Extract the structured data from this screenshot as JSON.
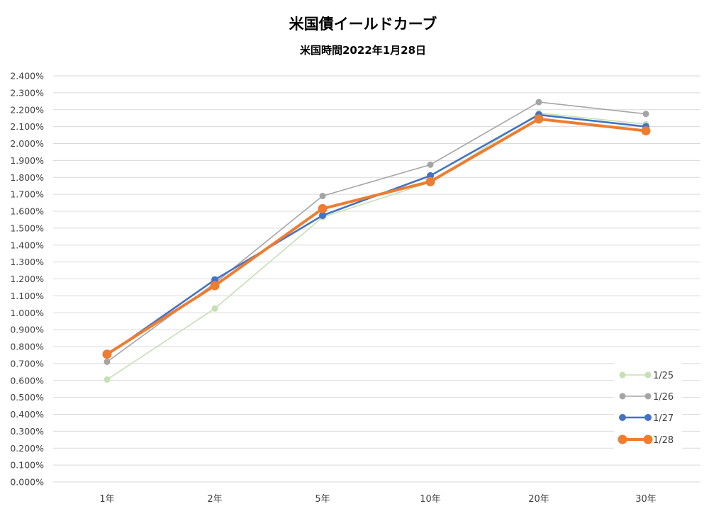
{
  "chart_data": {
    "type": "line",
    "title": "米国債イールドカーブ",
    "subtitle": "米国時間2022年1月28日",
    "categories": [
      "1年",
      "2年",
      "5年",
      "10年",
      "20年",
      "30年"
    ],
    "ylim": [
      0,
      2.4
    ],
    "ytick_step": 0.1,
    "ytick_format": "percent_3dp",
    "grid": true,
    "legend_position": "bottom-right",
    "series": [
      {
        "name": "1/25",
        "color": "#c5e0b4",
        "emphasis": "thin",
        "values": [
          0.605,
          1.025,
          1.565,
          1.77,
          2.18,
          2.115
        ]
      },
      {
        "name": "1/26",
        "color": "#a5a5a5",
        "emphasis": "thin",
        "values": [
          0.71,
          1.175,
          1.69,
          1.875,
          2.245,
          2.175
        ]
      },
      {
        "name": "1/27",
        "color": "#4472c4",
        "emphasis": "medium",
        "values": [
          0.75,
          1.195,
          1.575,
          1.81,
          2.17,
          2.1
        ]
      },
      {
        "name": "1/28",
        "color": "#ed7d31",
        "emphasis": "thick",
        "values": [
          0.755,
          1.16,
          1.615,
          1.775,
          2.145,
          2.075
        ]
      }
    ]
  }
}
